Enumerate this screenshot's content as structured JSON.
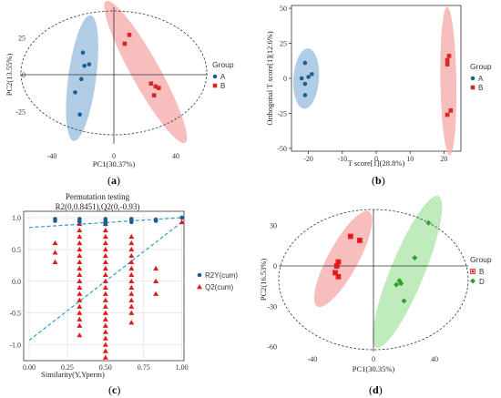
{
  "chart_data": [
    {
      "panel": "(a)",
      "type": "scatter",
      "xlabel": "PC1(30.37%)",
      "ylabel": "PC2(13.55%)",
      "xlim": [
        -60,
        60
      ],
      "ylim": [
        -42,
        42
      ],
      "xticks": [
        -40,
        0,
        40
      ],
      "yticks": [
        25,
        0,
        -25
      ],
      "legend_title": "Group",
      "series": [
        {
          "name": "A",
          "color": "#1a5e93",
          "marker": "circle",
          "ellipse_color": "#a3c4e2",
          "points": [
            [
              -20,
              15
            ],
            [
              -16,
              7
            ],
            [
              -19,
              6
            ],
            [
              -21,
              -3
            ],
            [
              -25,
              -12
            ],
            [
              -22,
              -27
            ]
          ]
        },
        {
          "name": "B",
          "color": "#d62728",
          "marker": "square",
          "ellipse_color": "#f7b3b3",
          "points": [
            [
              10,
              27
            ],
            [
              7,
              21
            ],
            [
              24,
              -6
            ],
            [
              27,
              -8
            ],
            [
              29,
              -9
            ],
            [
              26,
              -14
            ]
          ]
        }
      ]
    },
    {
      "panel": "(b)",
      "type": "scatter",
      "xlabel": "T score[1](28.8%)",
      "ylabel": "Orthogonal T score[1](12.6%)",
      "xlim": [
        -25,
        25
      ],
      "ylim": [
        -52,
        52
      ],
      "xticks": [
        -20,
        -10,
        0,
        10,
        20
      ],
      "yticks": [
        50,
        25,
        0,
        -25,
        -50
      ],
      "legend_title": "Group",
      "series": [
        {
          "name": "A",
          "color": "#1a5e93",
          "marker": "circle",
          "ellipse_color": "#a3c4e2",
          "points": [
            [
              -21,
              11
            ],
            [
              -22,
              0
            ],
            [
              -20,
              1
            ],
            [
              -19,
              3
            ],
            [
              -21,
              -4
            ],
            [
              -21,
              -12
            ]
          ]
        },
        {
          "name": "B",
          "color": "#d62728",
          "marker": "square",
          "ellipse_color": "#f7b3b3",
          "points": [
            [
              21.5,
              16
            ],
            [
              21,
              13
            ],
            [
              21,
              10
            ],
            [
              22,
              -23
            ],
            [
              21,
              -26
            ]
          ]
        }
      ]
    },
    {
      "panel": "(c)",
      "type": "scatter",
      "title": "Permutation testing",
      "subtitle": "R2(0,0.8451),Q2(0,-0.93)",
      "xlabel": "Similarity(Y,Yperm)",
      "ylabel": "",
      "xlim": [
        0,
        1.05
      ],
      "ylim": [
        -1.25,
        1.1
      ],
      "xticks": [
        "0.00",
        "0.25",
        "0.50",
        "0.75",
        "1.00"
      ],
      "yticks": [
        "1.0",
        "0.5",
        "0.0",
        "-0.5",
        "-1.0"
      ],
      "legend": [
        {
          "name": "R2Y(cum)",
          "color": "#1a5e93",
          "marker": "circle"
        },
        {
          "name": "Q2(cum)",
          "color": "#e31a1c",
          "marker": "triangle"
        }
      ],
      "r2_line": [
        [
          0,
          0.845
        ],
        [
          1,
          1.0
        ]
      ],
      "q2_line": [
        [
          0,
          -0.93
        ],
        [
          1,
          0.93
        ]
      ],
      "r2_points": [
        [
          0.17,
          0.98
        ],
        [
          0.17,
          0.95
        ],
        [
          0.33,
          0.98
        ],
        [
          0.33,
          0.95
        ],
        [
          0.33,
          0.93
        ],
        [
          0.5,
          0.98
        ],
        [
          0.5,
          0.95
        ],
        [
          0.5,
          0.93
        ],
        [
          0.5,
          0.9
        ],
        [
          0.67,
          0.98
        ],
        [
          0.67,
          0.95
        ],
        [
          0.67,
          0.93
        ],
        [
          0.83,
          0.97
        ],
        [
          0.83,
          0.95
        ],
        [
          1.0,
          1.0
        ]
      ],
      "q2_columns": [
        {
          "x": 0.17,
          "values": [
            0.6,
            0.45,
            0.3
          ]
        },
        {
          "x": 0.33,
          "values": [
            0.9,
            0.8,
            0.7,
            0.6,
            0.5,
            0.4,
            0.3,
            0.2,
            0.1,
            0.0,
            -0.1,
            -0.2,
            -0.3,
            -0.4,
            -0.5,
            -0.6,
            -0.7,
            -0.85
          ]
        },
        {
          "x": 0.5,
          "values": [
            0.9,
            0.8,
            0.7,
            0.6,
            0.5,
            0.4,
            0.3,
            0.2,
            0.1,
            0.0,
            -0.1,
            -0.2,
            -0.3,
            -0.4,
            -0.5,
            -0.6,
            -0.7,
            -0.8,
            -0.9,
            -1.0,
            -1.1,
            -1.2
          ]
        },
        {
          "x": 0.67,
          "values": [
            0.7,
            0.6,
            0.5,
            0.4,
            0.3,
            0.2,
            0.1,
            0.0,
            -0.1,
            -0.2,
            -0.3,
            -0.4,
            -0.5,
            -0.65
          ]
        },
        {
          "x": 0.83,
          "values": [
            0.2,
            0.0,
            -0.2
          ]
        },
        {
          "x": 1.0,
          "values": [
            0.93
          ]
        }
      ]
    },
    {
      "panel": "(d)",
      "type": "scatter",
      "xlabel": "PC1(30.35%)",
      "ylabel": "PC2(16.53%)",
      "xlim": [
        -62,
        62
      ],
      "ylim": [
        -62,
        45
      ],
      "xticks": [
        -40,
        0,
        40
      ],
      "yticks": [
        30,
        0,
        -30,
        -60
      ],
      "legend_title": "Group",
      "series": [
        {
          "name": "B",
          "color": "#e31a1c",
          "marker": "square",
          "ellipse_color": "#f7b3b3",
          "points": [
            [
              -15,
              22
            ],
            [
              -9,
              19
            ],
            [
              -23,
              3
            ],
            [
              -24,
              0
            ],
            [
              -23,
              -8
            ],
            [
              -25,
              -5
            ]
          ]
        },
        {
          "name": "D",
          "color": "#2ca02c",
          "marker": "diamond",
          "ellipse_color": "#b5e8b0",
          "points": [
            [
              36,
              32
            ],
            [
              27,
              6
            ],
            [
              17,
              -11
            ],
            [
              15,
              -14
            ],
            [
              18,
              -13
            ],
            [
              20,
              -26
            ]
          ]
        }
      ]
    }
  ]
}
